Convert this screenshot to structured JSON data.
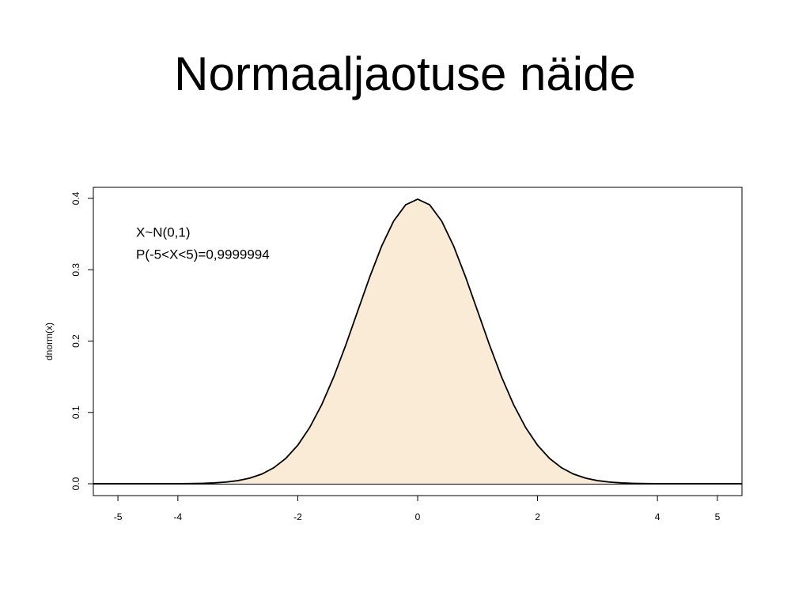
{
  "chart_data": {
    "type": "line",
    "title": "Normaaljaotuse näide",
    "y_label": "dnorm(x)",
    "annotations": [
      "X~N(0,1)",
      "P(-5<X<5)=0,9999994"
    ],
    "x": [
      -5.4,
      -5.2,
      -5,
      -4.8,
      -4.6,
      -4.4,
      -4.2,
      -4,
      -3.8,
      -3.6,
      -3.4,
      -3.2,
      -3,
      -2.8,
      -2.6,
      -2.4,
      -2.2,
      -2,
      -1.8,
      -1.6,
      -1.4,
      -1.2,
      -1,
      -0.8,
      -0.6,
      -0.4,
      -0.2,
      0,
      0.2,
      0.4,
      0.6,
      0.8,
      1,
      1.2,
      1.4,
      1.6,
      1.8,
      2,
      2.2,
      2.4,
      2.6,
      2.8,
      3,
      3.2,
      3.4,
      3.6,
      3.8,
      4,
      4.2,
      4.4,
      4.6,
      4.8,
      5,
      5.2,
      5.4
    ],
    "series": [
      {
        "color": "#000000",
        "fill": "#faebd7",
        "values": [
          0,
          0,
          0,
          0,
          0,
          0,
          0,
          0.0001,
          0.0003,
          0.0006,
          0.0012,
          0.0024,
          0.0044,
          0.0079,
          0.0136,
          0.0224,
          0.0355,
          0.054,
          0.079,
          0.1109,
          0.1497,
          0.1942,
          0.242,
          0.2897,
          0.3332,
          0.3683,
          0.391,
          0.3989,
          0.391,
          0.3683,
          0.3332,
          0.2897,
          0.242,
          0.1942,
          0.1497,
          0.1109,
          0.079,
          0.054,
          0.0355,
          0.0224,
          0.0136,
          0.0079,
          0.0044,
          0.0024,
          0.0012,
          0.0006,
          0.0003,
          0.0001,
          0,
          0,
          0,
          0,
          0,
          0,
          0
        ]
      }
    ],
    "hline": 0,
    "xlim": [
      -5.41,
      5.41
    ],
    "ylim": [
      -0.0166,
      0.4155
    ],
    "xticks": [
      -5,
      -4,
      -2,
      0,
      2,
      4,
      5
    ],
    "yticks": [
      {
        "value": 0,
        "label": "0.0"
      },
      0.1,
      0.2,
      0.3,
      0.4
    ]
  }
}
